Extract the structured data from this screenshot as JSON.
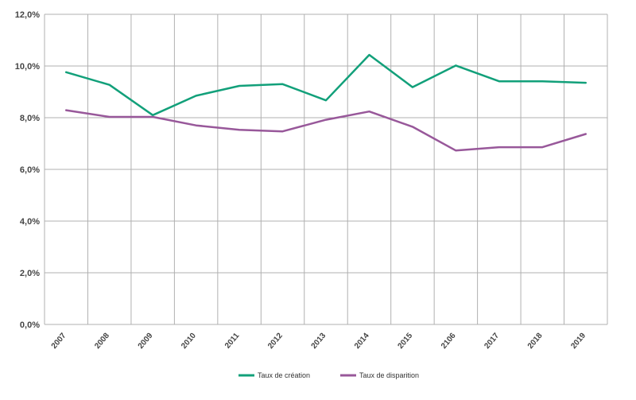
{
  "chart_data": {
    "type": "line",
    "categories": [
      "2007",
      "2008",
      "2009",
      "2010",
      "2011",
      "2012",
      "2013",
      "2014",
      "2015",
      "2106",
      "2017",
      "2018",
      "2019"
    ],
    "series": [
      {
        "name": "Taux de création",
        "color": "#12a07a",
        "values": [
          9.76,
          9.27,
          8.1,
          8.85,
          9.23,
          9.3,
          8.67,
          10.43,
          9.18,
          10.02,
          9.41,
          9.41,
          9.35
        ]
      },
      {
        "name": "Taux de disparition",
        "color": "#98589a",
        "values": [
          8.29,
          8.03,
          8.03,
          7.7,
          7.53,
          7.47,
          7.92,
          8.24,
          7.65,
          6.73,
          6.86,
          6.86,
          7.37
        ]
      }
    ],
    "y_ticks": [
      "0,0%",
      "2,0%",
      "4,0%",
      "6,0%",
      "8,0%",
      "10,0%",
      "12,0%"
    ],
    "ylim": [
      0,
      12
    ],
    "grid": true,
    "legend_position": "bottom-center"
  }
}
